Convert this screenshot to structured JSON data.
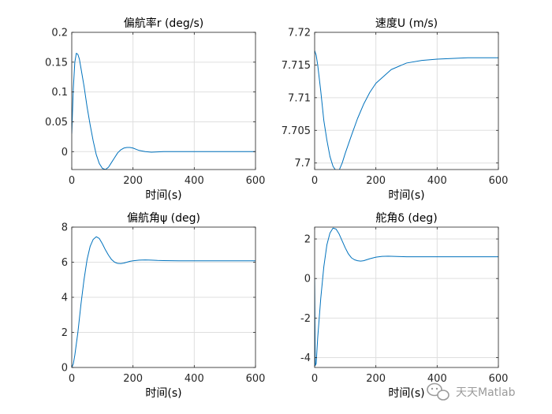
{
  "chart_data": [
    {
      "type": "line",
      "title": "偏航率r (deg/s)",
      "xlabel": "时间(s)",
      "ylabel": "",
      "xlim": [
        0,
        600
      ],
      "ylim": [
        -0.03,
        0.2
      ],
      "xticks": [
        0,
        200,
        400,
        600
      ],
      "yticks": [
        0,
        0.05,
        0.1,
        0.15,
        0.2
      ],
      "grid": true,
      "series": [
        {
          "color": "#0072bd",
          "x": [
            0,
            5,
            10,
            15,
            20,
            25,
            30,
            40,
            50,
            60,
            70,
            80,
            90,
            100,
            110,
            120,
            130,
            140,
            150,
            160,
            170,
            180,
            190,
            200,
            210,
            220,
            240,
            260,
            280,
            300,
            350,
            400,
            450,
            500,
            550,
            600
          ],
          "y": [
            0.03,
            0.105,
            0.15,
            0.165,
            0.163,
            0.155,
            0.14,
            0.11,
            0.075,
            0.045,
            0.018,
            -0.005,
            -0.02,
            -0.028,
            -0.03,
            -0.026,
            -0.018,
            -0.01,
            -0.002,
            0.003,
            0.006,
            0.007,
            0.007,
            0.006,
            0.004,
            0.002,
            0.0,
            -0.001,
            -0.0005,
            0.0,
            0.0,
            0.0,
            0.0,
            0.0,
            0.0,
            0.0
          ]
        }
      ]
    },
    {
      "type": "line",
      "title": "速度U (m/s)",
      "xlabel": "时间(s)",
      "ylabel": "",
      "xlim": [
        0,
        600
      ],
      "ylim": [
        7.699,
        7.72
      ],
      "xticks": [
        0,
        200,
        400,
        600
      ],
      "yticks": [
        7.7,
        7.705,
        7.71,
        7.715,
        7.72
      ],
      "grid": true,
      "series": [
        {
          "color": "#0072bd",
          "x": [
            0,
            5,
            10,
            20,
            30,
            40,
            50,
            60,
            70,
            75,
            80,
            90,
            100,
            120,
            140,
            160,
            180,
            200,
            250,
            300,
            350,
            400,
            450,
            500,
            550,
            600
          ],
          "y": [
            7.7172,
            7.7165,
            7.715,
            7.711,
            7.7065,
            7.7035,
            7.701,
            7.6995,
            7.6988,
            7.6987,
            7.6989,
            7.7,
            7.7015,
            7.7042,
            7.7068,
            7.709,
            7.7108,
            7.7122,
            7.7143,
            7.7153,
            7.7157,
            7.7159,
            7.716,
            7.7161,
            7.7161,
            7.7161
          ]
        }
      ]
    },
    {
      "type": "line",
      "title": "偏航角ψ (deg)",
      "xlabel": "时间(s)",
      "ylabel": "",
      "xlim": [
        0,
        600
      ],
      "ylim": [
        0,
        8
      ],
      "xticks": [
        0,
        200,
        400,
        600
      ],
      "yticks": [
        0,
        2,
        4,
        6,
        8
      ],
      "grid": true,
      "series": [
        {
          "color": "#0072bd",
          "x": [
            0,
            5,
            10,
            20,
            30,
            40,
            50,
            60,
            70,
            80,
            90,
            100,
            110,
            120,
            130,
            140,
            150,
            160,
            170,
            180,
            190,
            200,
            220,
            240,
            260,
            280,
            300,
            350,
            400,
            450,
            500,
            550,
            600
          ],
          "y": [
            0,
            0.2,
            0.7,
            2.0,
            3.6,
            5.0,
            6.15,
            6.9,
            7.3,
            7.45,
            7.35,
            7.05,
            6.7,
            6.4,
            6.15,
            6.0,
            5.93,
            5.92,
            5.95,
            6.0,
            6.05,
            6.08,
            6.12,
            6.13,
            6.12,
            6.1,
            6.09,
            6.08,
            6.08,
            6.08,
            6.08,
            6.08,
            6.08
          ]
        }
      ]
    },
    {
      "type": "line",
      "title": "舵角δ (deg)",
      "xlabel": "时间(s)",
      "ylabel": "",
      "xlim": [
        0,
        600
      ],
      "ylim": [
        -4.5,
        2.6
      ],
      "xticks": [
        0,
        200,
        400,
        600
      ],
      "yticks": [
        -4,
        -2,
        0,
        2
      ],
      "grid": true,
      "series": [
        {
          "color": "#0072bd",
          "x": [
            0,
            2,
            5,
            10,
            20,
            30,
            40,
            50,
            60,
            70,
            80,
            90,
            100,
            110,
            120,
            130,
            140,
            150,
            160,
            170,
            180,
            200,
            220,
            240,
            260,
            280,
            300,
            350,
            400,
            450,
            500,
            550,
            600
          ],
          "y": [
            0,
            -4.4,
            -4.3,
            -3.0,
            -1.0,
            0.6,
            1.7,
            2.3,
            2.55,
            2.5,
            2.25,
            1.9,
            1.55,
            1.25,
            1.05,
            0.95,
            0.9,
            0.88,
            0.9,
            0.95,
            1.0,
            1.08,
            1.12,
            1.13,
            1.12,
            1.11,
            1.1,
            1.1,
            1.1,
            1.1,
            1.1,
            1.1,
            1.1
          ]
        }
      ]
    }
  ],
  "watermark": {
    "text": "天天Matlab",
    "icon": "wechat-icon"
  }
}
